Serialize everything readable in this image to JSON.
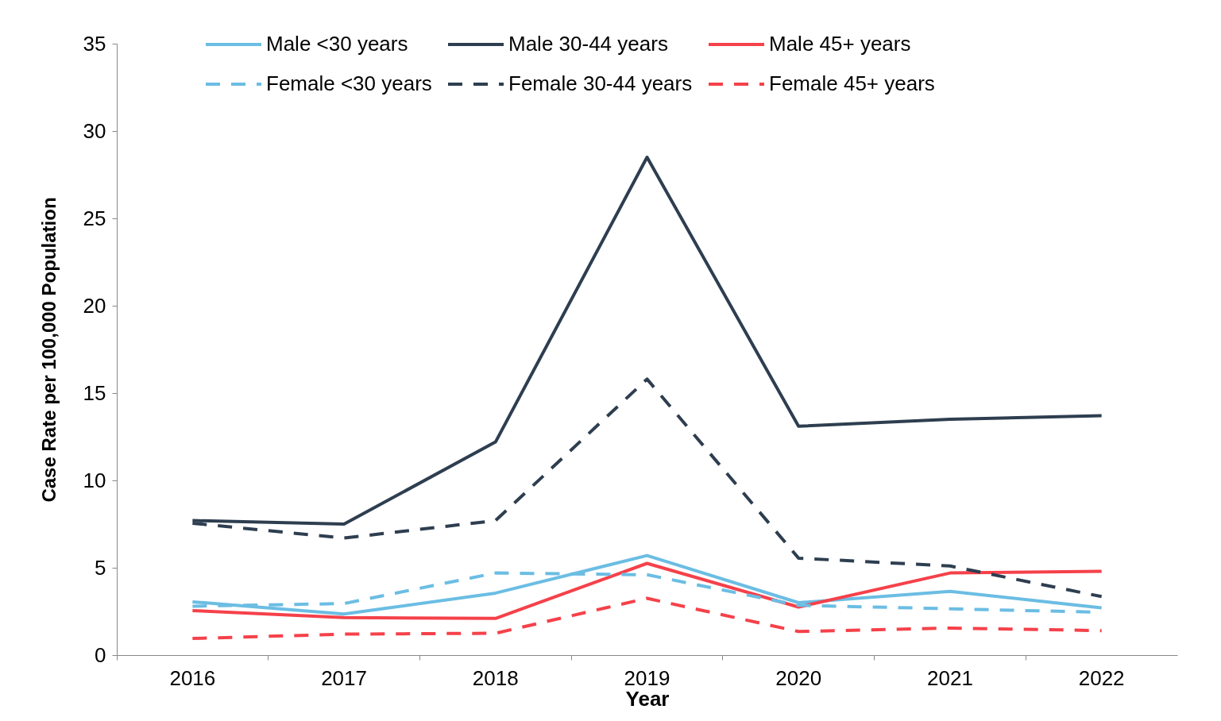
{
  "chart_data": {
    "type": "line",
    "xlabel": "Year",
    "ylabel": "Case Rate per 100,000 Population",
    "categories": [
      "2016",
      "2017",
      "2018",
      "2019",
      "2020",
      "2021",
      "2022"
    ],
    "ylim": [
      0,
      35
    ],
    "yticks": [
      0,
      5,
      10,
      15,
      20,
      25,
      30,
      35
    ],
    "grid": false,
    "legend": "top",
    "marker": "none",
    "series": [
      {
        "name": "Male <30 years",
        "color": "#6bbde3",
        "line_style": "solid",
        "values": [
          3.05,
          2.35,
          3.55,
          5.7,
          3.0,
          3.65,
          2.7
        ]
      },
      {
        "name": "Male 30-44 years",
        "color": "#2e3e50",
        "line_style": "solid",
        "values": [
          7.7,
          7.5,
          12.2,
          28.5,
          13.1,
          13.5,
          13.7
        ]
      },
      {
        "name": "Male 45+ years",
        "color": "#f5414a",
        "line_style": "solid",
        "values": [
          2.55,
          2.15,
          2.1,
          5.25,
          2.75,
          4.7,
          4.8
        ]
      },
      {
        "name": "Female <30 years",
        "color": "#6bbde3",
        "line_style": "dashed",
        "values": [
          2.8,
          2.95,
          4.7,
          4.6,
          2.85,
          2.65,
          2.45
        ]
      },
      {
        "name": "Female 30-44 years",
        "color": "#2e3e50",
        "line_style": "dashed",
        "values": [
          7.55,
          6.7,
          7.7,
          15.8,
          5.55,
          5.1,
          3.35
        ]
      },
      {
        "name": "Female 45+ years",
        "color": "#f5414a",
        "line_style": "dashed",
        "values": [
          0.95,
          1.2,
          1.25,
          3.25,
          1.35,
          1.55,
          1.4
        ]
      }
    ]
  }
}
